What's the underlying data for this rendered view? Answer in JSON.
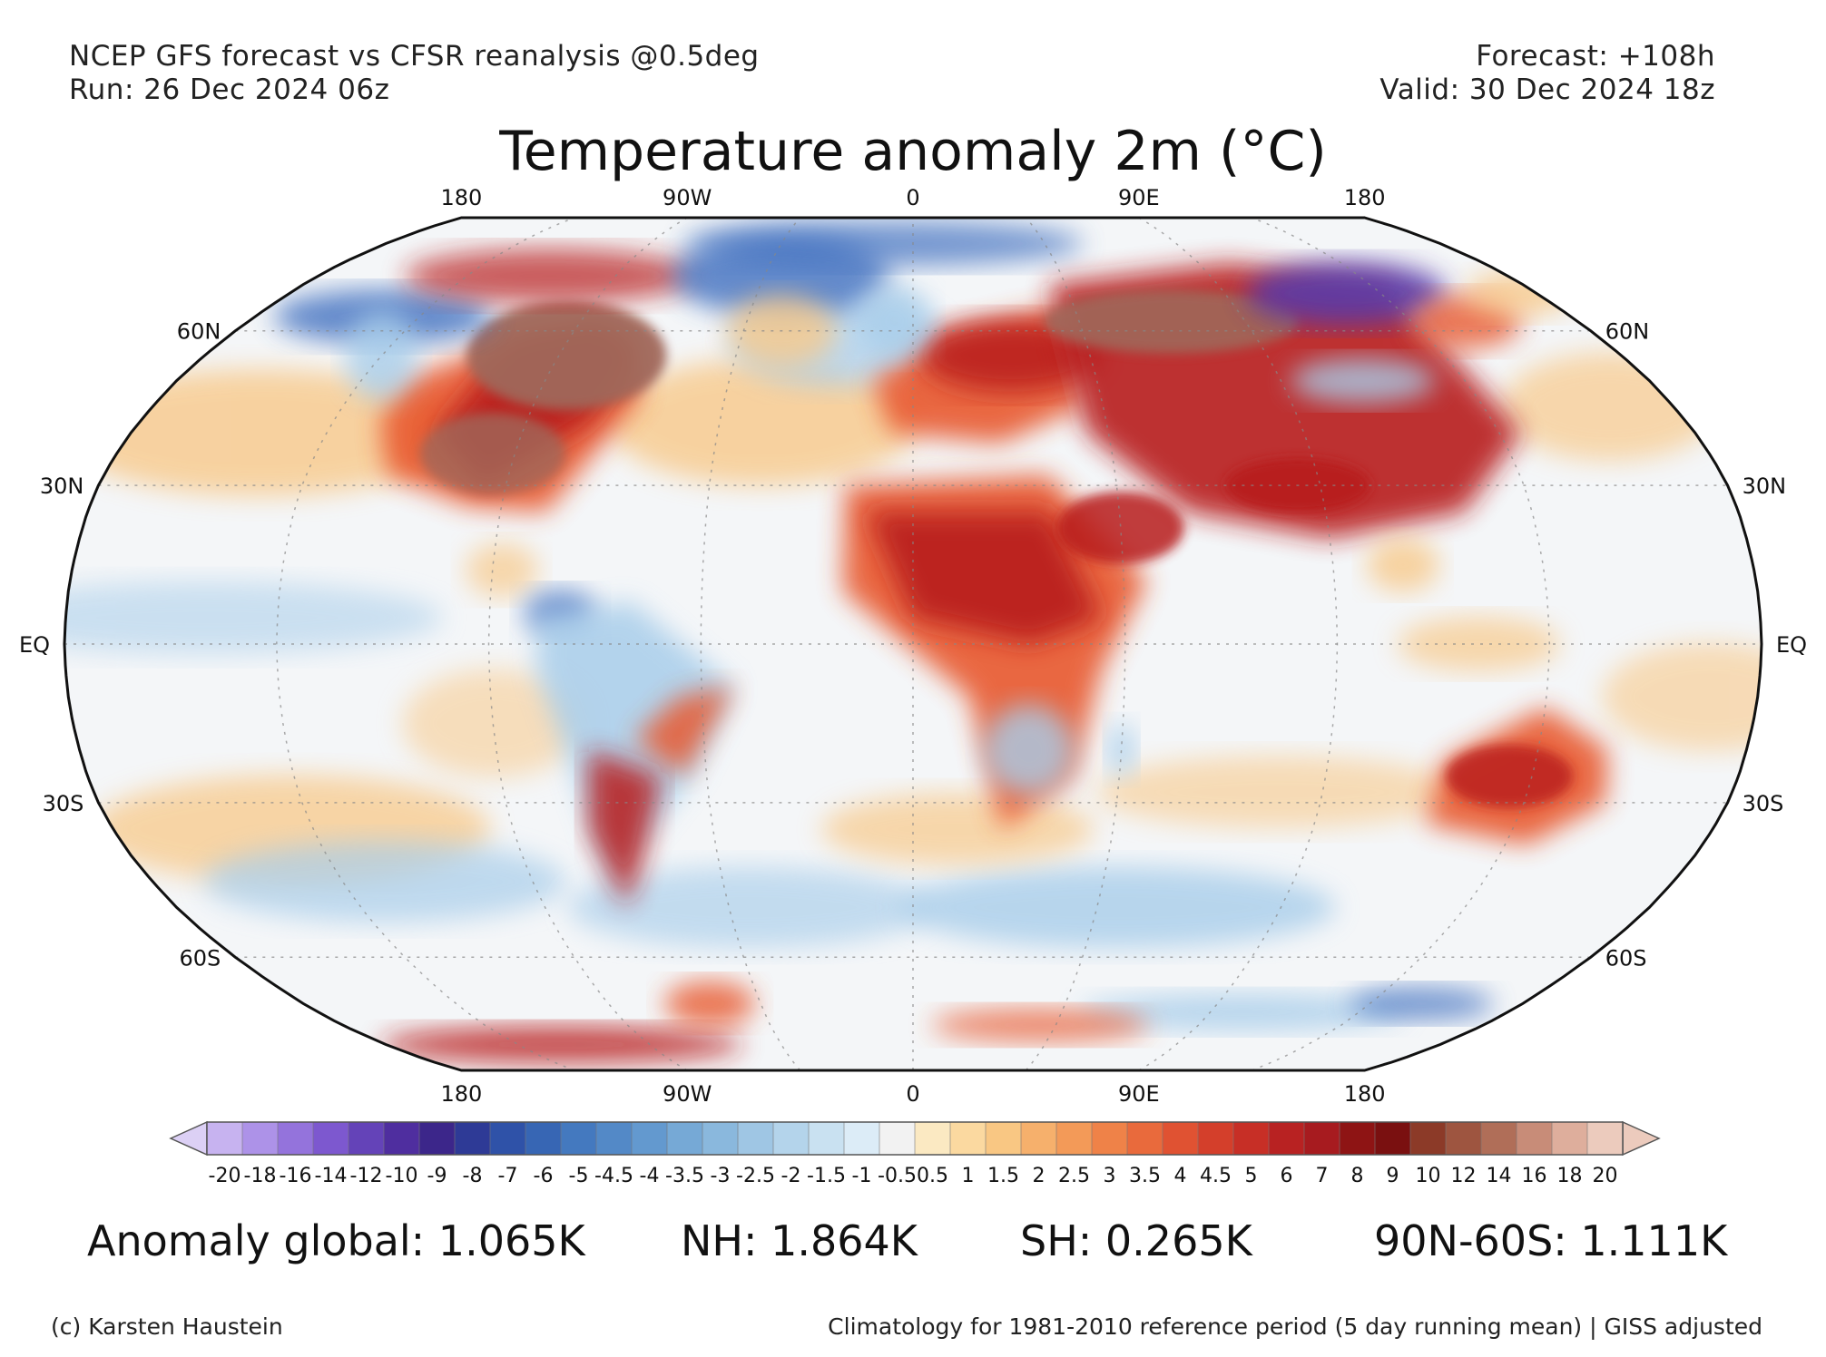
{
  "header": {
    "model_line": "NCEP GFS forecast vs CFSR reanalysis @0.5deg",
    "run_line": "Run: 26 Dec 2024 06z",
    "forecast_line": "Forecast: +108h",
    "valid_line": "Valid: 30 Dec 2024 18z"
  },
  "title": "Temperature anomaly 2m (°C)",
  "map": {
    "projection": "robinson",
    "lon_labels": [
      "180",
      "90W",
      "0",
      "90E",
      "180"
    ],
    "lat_labels": [
      {
        "label": "60N",
        "lat": 60
      },
      {
        "label": "30N",
        "lat": 30
      },
      {
        "label": "EQ",
        "lat": 0
      },
      {
        "label": "30S",
        "lat": -30
      },
      {
        "label": "60S",
        "lat": -60
      }
    ],
    "colors": {
      "ocean_neutral": "#f4f6f8",
      "warm_light": "#f8c98a",
      "warm": "#e8582e",
      "hot": "#b81d1a",
      "extreme_hot": "#a0685a",
      "cool": "#a8cdea",
      "cold": "#3f6fc0",
      "extreme_cold": "#5a3aa8"
    }
  },
  "colorbar": {
    "tick_labels": [
      "-20",
      "-18",
      "-16",
      "-14",
      "-12",
      "-10",
      "-9",
      "-8",
      "-7",
      "-6",
      "-5",
      "-4.5",
      "-4",
      "-3.5",
      "-3",
      "-2.5",
      "-2",
      "-1.5",
      "-1",
      "-0.5",
      "0.5",
      "1",
      "1.5",
      "2",
      "2.5",
      "3",
      "3.5",
      "4",
      "4.5",
      "5",
      "6",
      "7",
      "8",
      "9",
      "10",
      "12",
      "14",
      "16",
      "18",
      "20"
    ],
    "colors": [
      "#dcd0f5",
      "#c7b3f0",
      "#ad92e8",
      "#9473dc",
      "#7d58cf",
      "#6443b8",
      "#4f2e9f",
      "#3c268a",
      "#2e3a96",
      "#2f52a8",
      "#3766b4",
      "#4479bf",
      "#5389c7",
      "#6399cf",
      "#76a9d6",
      "#8ab8dd",
      "#9fc6e4",
      "#b4d4eb",
      "#c9e1f1",
      "#dcecf7",
      "#f2f2f2",
      "#fbe9c2",
      "#fbd9a0",
      "#f9c783",
      "#f6b06c",
      "#f39a58",
      "#ef8248",
      "#e96a3c",
      "#e05232",
      "#d43f2b",
      "#c72f26",
      "#b82222",
      "#a71b1f",
      "#8e1414",
      "#7a1010",
      "#8c3a28",
      "#9e5540",
      "#b06e58",
      "#c88c78",
      "#deae9c",
      "#eccbbd"
    ]
  },
  "stats": {
    "global": "Anomaly global: 1.065K",
    "nh": "NH: 1.864K",
    "sh": "SH: 0.265K",
    "band": "90N-60S: 1.111K"
  },
  "footer": {
    "credit": "(c) Karsten Haustein",
    "climatology": "Climatology for 1981-2010 reference period (5 day running mean) | GISS adjusted"
  }
}
